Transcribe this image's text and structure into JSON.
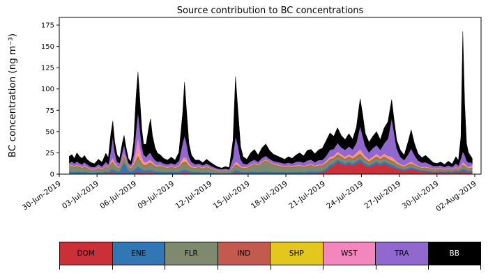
{
  "chart_data": {
    "type": "area",
    "stacked": true,
    "title": "Source contribution to BC concentrations",
    "ylabel": "BC concentration (ng m⁻³)",
    "grid": false,
    "legend_position": "bottom",
    "xlim": [
      0,
      33.5
    ],
    "ylim": [
      0,
      184
    ],
    "yticks": [
      0,
      25,
      50,
      75,
      100,
      125,
      150,
      175
    ],
    "xticks": {
      "days": [
        0,
        3,
        6,
        9,
        12,
        15,
        18,
        21,
        24,
        27,
        30,
        33
      ],
      "labels": [
        "30-Jun-2019",
        "03-Jul-2019",
        "06-Jul-2019",
        "09-Jul-2019",
        "12-Jul-2019",
        "15-Jul-2019",
        "18-Jul-2019",
        "21-Jul-2019",
        "24-Jul-2019",
        "27-Jul-2019",
        "30-Jul-2019",
        "02-Aug-2019"
      ]
    },
    "x_days": [
      0.8,
      1.0,
      1.2,
      1.4,
      1.6,
      1.8,
      2.0,
      2.2,
      2.5,
      2.8,
      3.1,
      3.4,
      3.7,
      3.9,
      4.1,
      4.25,
      4.4,
      4.6,
      4.8,
      5.0,
      5.15,
      5.3,
      5.5,
      5.7,
      5.9,
      6.1,
      6.25,
      6.4,
      6.55,
      6.7,
      6.9,
      7.1,
      7.25,
      7.4,
      7.6,
      7.8,
      8.0,
      8.3,
      8.6,
      8.9,
      9.2,
      9.5,
      9.8,
      9.95,
      10.1,
      10.3,
      10.5,
      10.8,
      11.1,
      11.4,
      11.7,
      12.0,
      12.3,
      12.6,
      12.9,
      13.2,
      13.5,
      13.8,
      14.0,
      14.2,
      14.4,
      14.6,
      14.9,
      15.2,
      15.5,
      15.8,
      16.1,
      16.4,
      16.7,
      17.0,
      17.3,
      17.6,
      17.9,
      18.2,
      18.5,
      18.8,
      19.1,
      19.4,
      19.7,
      20.0,
      20.3,
      20.6,
      20.9,
      21.2,
      21.5,
      21.8,
      22.1,
      22.4,
      22.7,
      23.0,
      23.3,
      23.6,
      23.9,
      24.1,
      24.3,
      24.6,
      24.9,
      25.2,
      25.5,
      25.8,
      26.1,
      26.4,
      26.6,
      26.8,
      27.1,
      27.4,
      27.7,
      27.95,
      28.2,
      28.5,
      28.8,
      29.1,
      29.4,
      29.7,
      30.0,
      30.3,
      30.6,
      30.9,
      31.2,
      31.5,
      31.7,
      31.9,
      32.05,
      32.2,
      32.35,
      32.5,
      32.65,
      32.8
    ],
    "series": [
      {
        "name": "DOM",
        "color": "#cb3038",
        "text_color": "#000000",
        "values": [
          1,
          1,
          1,
          1,
          1,
          1,
          1,
          1,
          0.8,
          0.8,
          1,
          1,
          1.5,
          1,
          2,
          2,
          1.5,
          1,
          1,
          1.5,
          2,
          1.5,
          1,
          1,
          1.5,
          2,
          3,
          2,
          2,
          1.5,
          1.5,
          2,
          2,
          1.5,
          1.5,
          1,
          1,
          1,
          1,
          1,
          1,
          1,
          2,
          2,
          2,
          1.5,
          1,
          1,
          1,
          1,
          1,
          1,
          0.8,
          0.6,
          0.5,
          0.6,
          0.5,
          1,
          2,
          1.5,
          1,
          1,
          1,
          1,
          1,
          1,
          1,
          1,
          1,
          1,
          1,
          1,
          1,
          1,
          1,
          1,
          1,
          1,
          1,
          1.5,
          1,
          1.5,
          2,
          4,
          8,
          10,
          14,
          12,
          10,
          12,
          10,
          12,
          15,
          12,
          10,
          8,
          10,
          12,
          10,
          12,
          10,
          8,
          8,
          6,
          5,
          4,
          5,
          6,
          5,
          4,
          3,
          3,
          2.5,
          2,
          2,
          2.5,
          2,
          2.5,
          2,
          3,
          2.5,
          3,
          3,
          3,
          2.5,
          2,
          2.5,
          3
        ]
      },
      {
        "name": "ENE",
        "color": "#3177b4",
        "text_color": "#000000",
        "values": [
          2,
          2,
          1.5,
          2,
          2,
          1.5,
          2,
          1.5,
          1,
          1,
          1.5,
          1,
          2,
          1.5,
          3,
          4,
          3,
          2,
          2,
          8,
          12,
          8,
          3,
          2,
          3,
          5,
          6,
          5,
          4,
          3,
          3,
          3,
          3,
          3,
          2,
          2,
          2,
          1.5,
          1.5,
          2,
          1.5,
          2,
          3,
          3,
          3,
          2,
          2,
          1.5,
          1.5,
          1,
          1.5,
          1,
          1,
          0.8,
          0.7,
          0.8,
          0.7,
          2,
          3,
          2.5,
          2,
          1.5,
          1.5,
          2,
          2,
          1.5,
          2,
          2,
          2,
          1.5,
          1.5,
          1.5,
          1.5,
          1.5,
          1.5,
          1.5,
          2,
          1.5,
          2,
          2,
          2,
          2,
          2,
          2.5,
          3,
          3,
          3,
          3,
          2.5,
          3,
          2.5,
          3,
          3,
          3,
          2.5,
          2.5,
          2.5,
          3,
          2.5,
          3,
          3,
          3,
          2.5,
          2,
          2,
          1.5,
          2,
          2,
          2,
          1.5,
          1.5,
          1.5,
          1.5,
          1,
          1,
          1,
          1,
          1,
          1,
          1.5,
          1,
          2,
          3,
          2.5,
          2,
          1.5,
          1.5,
          1.5
        ]
      },
      {
        "name": "FLR",
        "color": "#7e8a6e",
        "text_color": "#000000",
        "values": [
          5,
          6,
          5,
          6,
          5,
          4,
          5,
          4,
          3,
          3,
          4,
          3,
          5,
          4,
          6,
          7,
          5,
          4,
          4,
          5,
          6,
          5,
          4,
          3,
          5,
          8,
          10,
          8,
          6,
          5,
          5,
          6,
          7,
          6,
          5,
          5,
          6,
          5,
          4,
          5,
          4,
          5,
          7,
          8,
          7,
          5,
          4,
          4,
          5,
          4,
          5,
          4,
          3,
          2.5,
          2,
          2.5,
          2,
          4,
          5,
          5,
          4,
          4,
          4,
          6,
          8,
          7,
          10,
          12,
          10,
          8,
          7,
          6,
          5,
          6,
          5,
          6,
          6,
          5,
          6,
          6,
          5,
          6,
          5,
          5,
          5,
          4,
          4,
          4,
          3.5,
          4,
          4,
          4,
          4,
          4,
          3.5,
          3,
          3.5,
          4,
          3.5,
          4,
          3.5,
          3,
          3,
          3,
          2.5,
          2.5,
          3,
          3,
          3,
          2.5,
          2,
          2.5,
          2,
          2,
          2,
          2,
          1.5,
          2,
          1.5,
          2,
          2,
          3,
          4,
          3.5,
          3,
          2.5,
          2.5,
          2
        ]
      },
      {
        "name": "IND",
        "color": "#c25b4e",
        "text_color": "#000000",
        "values": [
          1,
          1,
          1,
          1,
          1,
          1,
          1,
          1,
          0.7,
          0.7,
          1,
          0.8,
          1,
          1,
          1.5,
          2,
          1.5,
          1,
          1,
          1.5,
          2,
          1.5,
          1,
          1,
          1.5,
          2.5,
          3,
          2.5,
          2,
          1.5,
          1.5,
          2,
          2,
          1.5,
          1.5,
          1,
          1,
          1,
          1,
          1,
          1,
          1,
          2,
          2,
          2,
          1.5,
          1,
          1,
          1,
          1,
          1,
          0.8,
          0.6,
          0.5,
          0.5,
          0.5,
          0.4,
          1,
          1.5,
          1.5,
          1,
          1,
          1,
          1,
          1,
          1,
          1,
          1.5,
          1,
          1,
          1,
          1,
          1,
          1,
          1,
          1,
          1,
          1,
          1,
          1.5,
          1,
          1,
          1.5,
          2,
          2,
          2,
          2.5,
          2,
          2,
          2,
          2,
          2.5,
          2.5,
          2,
          2,
          1.5,
          2,
          2,
          2,
          2,
          2,
          2,
          1.5,
          1.5,
          1,
          1,
          1.5,
          1.5,
          1,
          1,
          1,
          1,
          1,
          0.8,
          0.8,
          1,
          0.8,
          1,
          0.8,
          1,
          0.8,
          1,
          1.5,
          1,
          1,
          1,
          1,
          1
        ]
      },
      {
        "name": "SHP",
        "color": "#e3c71d",
        "text_color": "#000000",
        "values": [
          0.5,
          0.5,
          0.5,
          0.5,
          0.5,
          0.5,
          0.5,
          0.5,
          0.4,
          0.4,
          0.5,
          0.4,
          0.5,
          0.5,
          1,
          1.5,
          1,
          0.5,
          0.5,
          1,
          1,
          1,
          0.5,
          0.5,
          1,
          2,
          3,
          2,
          1.5,
          1,
          1,
          1,
          1,
          1,
          0.5,
          0.5,
          0.5,
          0.5,
          0.5,
          0.5,
          0.5,
          0.5,
          1.5,
          2,
          1.5,
          1,
          0.5,
          0.5,
          0.5,
          0.5,
          0.5,
          0.4,
          0.3,
          0.3,
          0.2,
          0.3,
          0.2,
          0.5,
          1,
          1,
          0.5,
          0.5,
          0.5,
          0.5,
          0.5,
          0.5,
          0.5,
          0.5,
          0.5,
          0.5,
          0.5,
          0.5,
          0.5,
          0.5,
          0.5,
          0.5,
          0.5,
          0.5,
          0.5,
          0.5,
          0.5,
          0.5,
          0.5,
          1,
          1,
          1,
          1,
          1,
          1,
          1,
          1,
          1.5,
          2,
          1.5,
          1,
          1,
          1,
          1,
          1,
          1,
          1,
          1.5,
          1,
          1,
          0.5,
          0.5,
          0.5,
          1,
          0.5,
          0.5,
          0.5,
          0.5,
          0.4,
          0.4,
          0.4,
          0.4,
          0.3,
          0.4,
          0.3,
          0.5,
          0.4,
          0.5,
          1,
          1,
          0.5,
          0.5,
          0.5,
          0.5
        ]
      },
      {
        "name": "WST",
        "color": "#f286bd",
        "text_color": "#000000",
        "values": [
          0.5,
          0.5,
          0.5,
          0.5,
          0.5,
          0.5,
          0.5,
          0.5,
          0.4,
          0.4,
          0.5,
          0.4,
          0.5,
          0.5,
          2,
          3,
          2,
          1,
          0.5,
          1,
          1.5,
          1,
          0.5,
          0.5,
          2,
          10,
          18,
          12,
          6,
          3,
          2,
          2,
          2,
          1.5,
          1,
          1,
          0.5,
          0.5,
          0.5,
          0.5,
          0.5,
          1,
          3,
          3,
          3,
          2,
          1,
          0.5,
          0.5,
          0.5,
          0.5,
          0.4,
          0.3,
          0.3,
          0.3,
          0.3,
          0.2,
          1,
          2,
          2,
          1,
          0.5,
          0.5,
          0.5,
          0.5,
          0.5,
          0.5,
          0.5,
          0.5,
          0.5,
          0.5,
          0.5,
          0.5,
          0.5,
          0.5,
          0.5,
          0.5,
          0.5,
          0.5,
          0.5,
          0.5,
          0.5,
          0.5,
          1,
          1.5,
          1.5,
          2,
          1.5,
          1.5,
          1.5,
          1.5,
          2,
          3,
          2.5,
          2,
          1.5,
          1.5,
          2,
          1.5,
          2,
          2,
          3,
          2,
          1.5,
          1,
          1,
          1,
          1.5,
          1,
          0.5,
          0.5,
          0.5,
          0.4,
          0.4,
          0.4,
          0.4,
          0.3,
          0.4,
          0.3,
          0.5,
          0.4,
          1,
          2,
          1.5,
          1,
          1,
          2,
          1.5
        ]
      },
      {
        "name": "TRA",
        "color": "#9168ce",
        "text_color": "#000000",
        "values": [
          3,
          4,
          3,
          4,
          3,
          3,
          4,
          3,
          2.5,
          2,
          3,
          2.5,
          4,
          3,
          12,
          25,
          12,
          5,
          4,
          8,
          10,
          6,
          3,
          3,
          8,
          22,
          30,
          22,
          12,
          8,
          6,
          8,
          8,
          6,
          5,
          4,
          4,
          3,
          3,
          3,
          3,
          5,
          18,
          25,
          18,
          8,
          5,
          3,
          3,
          2.5,
          3,
          2.5,
          2,
          1.5,
          1.5,
          1.5,
          1.5,
          10,
          30,
          20,
          8,
          4,
          3,
          4,
          4,
          3,
          4,
          4,
          3,
          3,
          3,
          3,
          3,
          3,
          3,
          4,
          4,
          4,
          5,
          5,
          4,
          5,
          5,
          6,
          8,
          8,
          10,
          8,
          8,
          9,
          8,
          12,
          27,
          20,
          12,
          8,
          10,
          10,
          8,
          12,
          20,
          45,
          30,
          15,
          8,
          6,
          10,
          15,
          10,
          6,
          5,
          5,
          4,
          3,
          3,
          3,
          2.5,
          3,
          2.5,
          4,
          3,
          8,
          12,
          10,
          6,
          5,
          4,
          3
        ]
      },
      {
        "name": "BB",
        "color": "#000000",
        "text_color": "#ffffff",
        "values": [
          8,
          8,
          6,
          10,
          8,
          7,
          8,
          6,
          5,
          4,
          6,
          5,
          10,
          8,
          20,
          18,
          12,
          8,
          6,
          10,
          11,
          8,
          5,
          4,
          15,
          40,
          47,
          35,
          20,
          12,
          15,
          30,
          40,
          25,
          15,
          10,
          8,
          6,
          5,
          7,
          5,
          10,
          35,
          63,
          40,
          15,
          8,
          5,
          4,
          3,
          5,
          4,
          3,
          2,
          1.5,
          2.5,
          2,
          20,
          70,
          40,
          15,
          8,
          6,
          10,
          12,
          8,
          12,
          14,
          10,
          8,
          7,
          6,
          5,
          7,
          6,
          8,
          10,
          8,
          12,
          12,
          10,
          12,
          14,
          18,
          20,
          15,
          18,
          14,
          12,
          15,
          12,
          18,
          32,
          25,
          15,
          12,
          14,
          16,
          12,
          18,
          20,
          22,
          15,
          10,
          8,
          6,
          15,
          22,
          14,
          8,
          6,
          8,
          6,
          4,
          3,
          4,
          3,
          5,
          3.5,
          8,
          6,
          25,
          141,
          60,
          20,
          12,
          8,
          6
        ]
      }
    ]
  }
}
